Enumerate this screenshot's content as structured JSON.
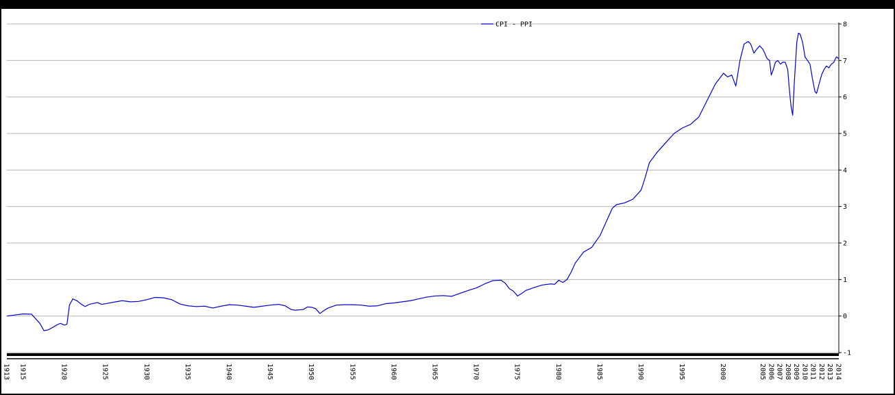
{
  "chart_data": {
    "type": "line",
    "title": "",
    "xlabel": "",
    "ylabel": "",
    "ylim": [
      -1,
      8
    ],
    "xlim": [
      1913,
      2014
    ],
    "grid": true,
    "legend_position": "top-center",
    "y_ticks": [
      "-1",
      "0",
      "1",
      "2",
      "3",
      "4",
      "5",
      "6",
      "7",
      "8"
    ],
    "x_tick_labels": [
      "1913",
      "1915",
      "1920",
      "1925",
      "1930",
      "1935",
      "1940",
      "1945",
      "1950",
      "1955",
      "1960",
      "1965",
      "1970",
      "1975",
      "1980",
      "1985",
      "1990",
      "1995",
      "2000",
      "2005",
      "2006",
      "2007",
      "2008",
      "2009",
      "2010",
      "2011",
      "2012",
      "2013",
      "2014"
    ],
    "series": [
      {
        "name": "CPI  -  PPI",
        "color": "#0000cc",
        "points": [
          [
            1913.0,
            0.0
          ],
          [
            1914.0,
            0.03
          ],
          [
            1915.0,
            0.06
          ],
          [
            1916.0,
            0.05
          ],
          [
            1917.0,
            -0.2
          ],
          [
            1917.5,
            -0.4
          ],
          [
            1918.0,
            -0.38
          ],
          [
            1918.5,
            -0.32
          ],
          [
            1919.0,
            -0.25
          ],
          [
            1919.5,
            -0.2
          ],
          [
            1920.0,
            -0.25
          ],
          [
            1920.3,
            -0.22
          ],
          [
            1920.6,
            0.3
          ],
          [
            1921.0,
            0.47
          ],
          [
            1921.5,
            0.42
          ],
          [
            1922.0,
            0.33
          ],
          [
            1922.5,
            0.26
          ],
          [
            1923.0,
            0.32
          ],
          [
            1924.0,
            0.37
          ],
          [
            1924.5,
            0.32
          ],
          [
            1925.0,
            0.34
          ],
          [
            1926.0,
            0.38
          ],
          [
            1927.0,
            0.42
          ],
          [
            1928.0,
            0.39
          ],
          [
            1929.0,
            0.4
          ],
          [
            1930.0,
            0.45
          ],
          [
            1931.0,
            0.51
          ],
          [
            1932.0,
            0.5
          ],
          [
            1933.0,
            0.45
          ],
          [
            1934.0,
            0.33
          ],
          [
            1935.0,
            0.28
          ],
          [
            1936.0,
            0.26
          ],
          [
            1937.0,
            0.27
          ],
          [
            1938.0,
            0.22
          ],
          [
            1939.0,
            0.27
          ],
          [
            1940.0,
            0.31
          ],
          [
            1941.0,
            0.3
          ],
          [
            1942.0,
            0.27
          ],
          [
            1943.0,
            0.24
          ],
          [
            1944.0,
            0.27
          ],
          [
            1945.0,
            0.3
          ],
          [
            1946.0,
            0.32
          ],
          [
            1946.8,
            0.28
          ],
          [
            1947.5,
            0.18
          ],
          [
            1948.0,
            0.16
          ],
          [
            1949.0,
            0.18
          ],
          [
            1949.5,
            0.25
          ],
          [
            1950.0,
            0.24
          ],
          [
            1950.5,
            0.2
          ],
          [
            1951.0,
            0.07
          ],
          [
            1951.5,
            0.15
          ],
          [
            1952.0,
            0.22
          ],
          [
            1953.0,
            0.3
          ],
          [
            1954.0,
            0.31
          ],
          [
            1955.0,
            0.31
          ],
          [
            1956.0,
            0.3
          ],
          [
            1957.0,
            0.27
          ],
          [
            1958.0,
            0.28
          ],
          [
            1959.0,
            0.34
          ],
          [
            1960.0,
            0.36
          ],
          [
            1961.0,
            0.39
          ],
          [
            1962.0,
            0.42
          ],
          [
            1963.0,
            0.47
          ],
          [
            1964.0,
            0.52
          ],
          [
            1965.0,
            0.55
          ],
          [
            1966.0,
            0.56
          ],
          [
            1967.0,
            0.54
          ],
          [
            1968.0,
            0.62
          ],
          [
            1969.0,
            0.7
          ],
          [
            1970.0,
            0.77
          ],
          [
            1971.0,
            0.88
          ],
          [
            1972.0,
            0.97
          ],
          [
            1973.0,
            0.98
          ],
          [
            1973.5,
            0.9
          ],
          [
            1974.0,
            0.75
          ],
          [
            1974.5,
            0.68
          ],
          [
            1975.0,
            0.55
          ],
          [
            1975.5,
            0.62
          ],
          [
            1976.0,
            0.7
          ],
          [
            1977.0,
            0.78
          ],
          [
            1978.0,
            0.85
          ],
          [
            1979.0,
            0.88
          ],
          [
            1979.5,
            0.87
          ],
          [
            1980.0,
            0.98
          ],
          [
            1980.5,
            0.92
          ],
          [
            1981.0,
            1.0
          ],
          [
            1981.5,
            1.2
          ],
          [
            1982.0,
            1.45
          ],
          [
            1983.0,
            1.75
          ],
          [
            1984.0,
            1.88
          ],
          [
            1985.0,
            2.2
          ],
          [
            1986.0,
            2.7
          ],
          [
            1986.5,
            2.95
          ],
          [
            1987.0,
            3.05
          ],
          [
            1988.0,
            3.1
          ],
          [
            1988.5,
            3.15
          ],
          [
            1989.0,
            3.2
          ],
          [
            1990.0,
            3.45
          ],
          [
            1990.5,
            3.8
          ],
          [
            1991.0,
            4.2
          ],
          [
            1992.0,
            4.5
          ],
          [
            1993.0,
            4.75
          ],
          [
            1994.0,
            5.0
          ],
          [
            1995.0,
            5.15
          ],
          [
            1996.0,
            5.25
          ],
          [
            1997.0,
            5.45
          ],
          [
            1998.0,
            5.9
          ],
          [
            1999.0,
            6.35
          ],
          [
            2000.0,
            6.65
          ],
          [
            2000.5,
            6.55
          ],
          [
            2001.0,
            6.6
          ],
          [
            2001.5,
            6.3
          ],
          [
            2002.0,
            7.0
          ],
          [
            2002.5,
            7.45
          ],
          [
            2003.0,
            7.52
          ],
          [
            2003.3,
            7.45
          ],
          [
            2003.7,
            7.2
          ],
          [
            2004.0,
            7.3
          ],
          [
            2004.4,
            7.4
          ],
          [
            2004.8,
            7.3
          ],
          [
            2005.0,
            7.2
          ],
          [
            2005.3,
            7.05
          ],
          [
            2005.6,
            7.0
          ],
          [
            2005.8,
            6.6
          ],
          [
            2006.0,
            6.72
          ],
          [
            2006.3,
            6.95
          ],
          [
            2006.6,
            7.0
          ],
          [
            2006.9,
            6.9
          ],
          [
            2007.2,
            6.95
          ],
          [
            2007.5,
            6.95
          ],
          [
            2007.8,
            6.75
          ],
          [
            2008.0,
            6.2
          ],
          [
            2008.2,
            5.75
          ],
          [
            2008.4,
            5.5
          ],
          [
            2008.6,
            6.4
          ],
          [
            2008.9,
            7.5
          ],
          [
            2009.1,
            7.75
          ],
          [
            2009.3,
            7.72
          ],
          [
            2009.6,
            7.5
          ],
          [
            2009.9,
            7.1
          ],
          [
            2010.2,
            7.0
          ],
          [
            2010.5,
            6.9
          ],
          [
            2010.8,
            6.5
          ],
          [
            2011.1,
            6.15
          ],
          [
            2011.3,
            6.1
          ],
          [
            2011.6,
            6.35
          ],
          [
            2011.9,
            6.6
          ],
          [
            2012.2,
            6.75
          ],
          [
            2012.5,
            6.85
          ],
          [
            2012.8,
            6.8
          ],
          [
            2013.1,
            6.9
          ],
          [
            2013.4,
            6.95
          ],
          [
            2013.7,
            7.1
          ],
          [
            2014.0,
            7.05
          ]
        ]
      }
    ]
  }
}
